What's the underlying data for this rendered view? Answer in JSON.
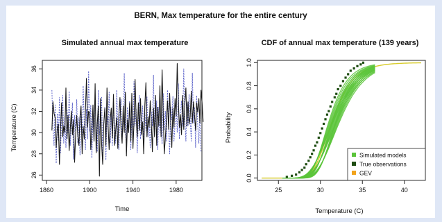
{
  "figure": {
    "title": "BERN, Max temperature for the entire century"
  },
  "colors": {
    "background": "#dfe7f6",
    "panel": "#ffffff",
    "series_black": "#1a1a1a",
    "series_blue": "#5c63c9",
    "sim_green": "#5bc43a",
    "obs_dark": "#1f4d12",
    "gev_orange": "#f2a31b",
    "gev_line": "#d8cc2a"
  },
  "chart_data": [
    {
      "type": "line",
      "title": "Simulated annual max temperature",
      "xlabel": "Time",
      "ylabel": "Temperature (C)",
      "xlim": [
        1860,
        2000
      ],
      "ylim": [
        25.5,
        36.8
      ],
      "xticks": [
        1860,
        1900,
        1940,
        1980
      ],
      "yticks": [
        26,
        28,
        30,
        32,
        34,
        36
      ],
      "grid": false,
      "series": [
        {
          "style": "solid-black",
          "x_start": 1865,
          "values": [
            30.2,
            32.9,
            31.8,
            31.4,
            28.6,
            30.4,
            30.8,
            27.0,
            30.3,
            32.8,
            29.6,
            30.6,
            30.0,
            34.2,
            29.4,
            31.6,
            28.3,
            30.4,
            32.0,
            29.8,
            31.2,
            27.2,
            29.8,
            31.6,
            29.7,
            28.8,
            31.5,
            32.5,
            28.0,
            30.6,
            29.4,
            32.0,
            35.1,
            30.5,
            32.0,
            31.9,
            28.4,
            30.2,
            32.6,
            29.2,
            34.6,
            28.1,
            30.9,
            32.5,
            25.9,
            33.2,
            29.0,
            27.0,
            30.8,
            32.3,
            28.8,
            34.2,
            30.6,
            28.4,
            31.3,
            32.3,
            29.5,
            33.6,
            28.8,
            30.2,
            31.4,
            28.5,
            31.6,
            33.3,
            30.4,
            29.0,
            32.5,
            30.0,
            33.8,
            27.8,
            31.2,
            30.0,
            32.8,
            29.2,
            33.7,
            28.5,
            30.9,
            35.0,
            31.4,
            29.6,
            32.8,
            30.2,
            33.2,
            29.8,
            31.0,
            28.0,
            32.5,
            34.7,
            29.6,
            31.5,
            30.5,
            33.0,
            31.0,
            28.2,
            32.3,
            29.6,
            33.5,
            28.8,
            32.4,
            30.6,
            34.4,
            29.6,
            35.9,
            31.9,
            28.0,
            29.5,
            31.1,
            33.0,
            30.3,
            33.7,
            31.0,
            28.6,
            32.3,
            30.5,
            33.2,
            31.6,
            36.5,
            32.9,
            30.5,
            31.7,
            29.8,
            33.5,
            30.3,
            32.7,
            34.2,
            30.6,
            32.9,
            30.8,
            31.5,
            33.9,
            30.9,
            32.9,
            31.6,
            30.2,
            32.8,
            31.9,
            33.2,
            30.9,
            34.0,
            32.8,
            31.0
          ]
        },
        {
          "style": "dotted-blue",
          "x_start": 1865,
          "values": [
            34.0,
            30.5,
            28.8,
            32.6,
            27.1,
            31.8,
            29.2,
            33.3,
            28.1,
            31.2,
            33.5,
            29.0,
            31.5,
            28.6,
            32.2,
            30.0,
            33.9,
            28.8,
            30.9,
            32.8,
            27.5,
            31.6,
            30.0,
            33.1,
            29.0,
            31.4,
            27.9,
            32.4,
            29.8,
            34.4,
            30.6,
            28.4,
            32.2,
            29.4,
            35.8,
            30.1,
            32.6,
            27.6,
            31.5,
            29.2,
            33.0,
            30.4,
            28.2,
            34.0,
            29.8,
            31.2,
            33.4,
            28.0,
            30.7,
            32.4,
            27.4,
            31.5,
            30.3,
            33.8,
            29.0,
            31.8,
            28.8,
            32.9,
            30.5,
            29.0,
            34.0,
            30.5,
            28.4,
            31.9,
            33.1,
            29.4,
            31.2,
            35.6,
            30.1,
            28.8,
            32.4,
            30.0,
            33.0,
            28.4,
            31.4,
            29.9,
            34.8,
            30.6,
            32.2,
            28.1,
            31.0,
            33.5,
            29.4,
            30.8,
            32.5,
            28.8,
            31.9,
            30.2,
            33.4,
            29.6,
            31.0,
            28.6,
            32.0,
            30.6,
            35.4,
            29.8,
            31.2,
            33.0,
            28.4,
            32.4,
            30.0,
            31.6,
            28.9,
            33.7,
            30.2,
            32.0,
            29.2,
            34.0,
            30.7,
            28.0,
            32.4,
            31.2,
            33.4,
            29.2,
            30.8,
            32.6,
            30.0,
            34.6,
            29.4,
            31.8,
            33.0,
            30.6,
            36.0,
            31.4,
            29.2,
            32.8,
            30.6,
            33.6,
            31.2,
            29.2,
            35.6,
            30.9,
            32.4,
            28.6,
            33.5,
            30.6,
            29.0,
            32.2,
            28.2
          ]
        }
      ]
    },
    {
      "type": "line",
      "title": "CDF of annual max temperature (139 years)",
      "xlabel": "Temperature (C)",
      "ylabel": "Probability",
      "xlim": [
        22.5,
        42.5
      ],
      "ylim": [
        -0.02,
        1.02
      ],
      "xticks": [
        25,
        30,
        35,
        40
      ],
      "yticks": [
        0.0,
        0.2,
        0.4,
        0.6,
        0.8,
        1.0
      ],
      "grid": false,
      "legend_position": "bottom-right",
      "legend": [
        {
          "label": "Simulated models",
          "color": "#5bc43a"
        },
        {
          "label": "True observations",
          "color": "#1f4d12"
        },
        {
          "label": "GEV",
          "color": "#f2a31b"
        }
      ],
      "simulated_models": {
        "count": 20,
        "mu_range": [
          30.5,
          31.6
        ],
        "sigma_range": [
          1.5,
          2.1
        ],
        "x_range": [
          25.5,
          36.5
        ]
      },
      "gev": {
        "mu": 30.8,
        "sigma": 1.7,
        "x_range": [
          23,
          42
        ]
      },
      "observations": [
        [
          26.0,
          0.01
        ],
        [
          26.6,
          0.02
        ],
        [
          27.1,
          0.03
        ],
        [
          27.5,
          0.05
        ],
        [
          27.8,
          0.07
        ],
        [
          28.1,
          0.09
        ],
        [
          28.3,
          0.12
        ],
        [
          28.6,
          0.15
        ],
        [
          28.8,
          0.18
        ],
        [
          29.0,
          0.21
        ],
        [
          29.2,
          0.24
        ],
        [
          29.4,
          0.28
        ],
        [
          29.6,
          0.31
        ],
        [
          29.8,
          0.35
        ],
        [
          30.0,
          0.39
        ],
        [
          30.2,
          0.43
        ],
        [
          30.4,
          0.47
        ],
        [
          30.6,
          0.51
        ],
        [
          30.8,
          0.55
        ],
        [
          31.0,
          0.58
        ],
        [
          31.2,
          0.62
        ],
        [
          31.4,
          0.66
        ],
        [
          31.7,
          0.7
        ],
        [
          31.9,
          0.73
        ],
        [
          32.1,
          0.77
        ],
        [
          32.4,
          0.8
        ],
        [
          32.7,
          0.84
        ],
        [
          33.0,
          0.87
        ],
        [
          33.3,
          0.9
        ],
        [
          33.6,
          0.93
        ],
        [
          34.0,
          0.95
        ],
        [
          34.4,
          0.97
        ],
        [
          34.8,
          0.985
        ],
        [
          35.1,
          1.0
        ]
      ]
    }
  ]
}
